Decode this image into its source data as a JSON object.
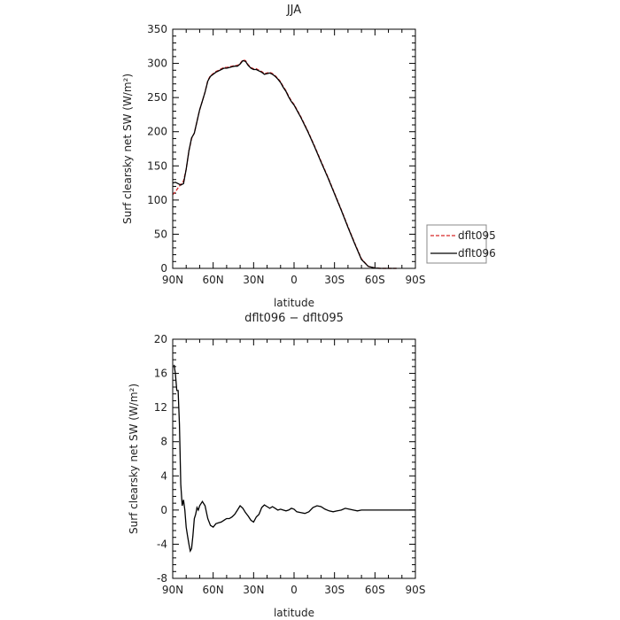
{
  "chart_data": [
    {
      "type": "line",
      "title": "JJA",
      "xlabel": "latitude",
      "ylabel": "Surf clearsky net SW (W/m²)",
      "xticks": [
        "90N",
        "60N",
        "30N",
        "0",
        "30S",
        "60S",
        "90S"
      ],
      "xlim": [
        90,
        -90
      ],
      "ylim": [
        0,
        350
      ],
      "yticks": [
        0,
        50,
        100,
        150,
        200,
        250,
        300,
        350
      ],
      "legend": {
        "placement": "right"
      },
      "series": [
        {
          "name": "dflt095",
          "color": "#d62728",
          "dash": "dashed",
          "x": [
            90,
            88,
            86,
            84,
            82,
            80,
            78,
            76,
            74,
            72,
            70,
            68,
            66,
            64,
            62,
            60,
            58,
            56,
            54,
            52,
            50,
            48,
            46,
            44,
            42,
            40,
            38,
            36,
            34,
            32,
            30,
            28,
            26,
            24,
            22,
            20,
            18,
            16,
            14,
            12,
            10,
            8,
            6,
            4,
            2,
            0,
            -5,
            -10,
            -15,
            -20,
            -25,
            -30,
            -35,
            -40,
            -45,
            -50,
            -55,
            -60,
            -62,
            -64,
            -66,
            -68,
            -70,
            -72,
            -74,
            -76
          ],
          "y": [
            108,
            112,
            118,
            123,
            128,
            145,
            172,
            190,
            198,
            215,
            232,
            245,
            258,
            275,
            282,
            285,
            288,
            290,
            292,
            294,
            294,
            295,
            296,
            297,
            297,
            300,
            305,
            304,
            298,
            294,
            292,
            292,
            290,
            288,
            285,
            286,
            287,
            285,
            282,
            278,
            273,
            266,
            260,
            252,
            245,
            240,
            222,
            202,
            180,
            157,
            134,
            110,
            86,
            61,
            37,
            14,
            3,
            0.5,
            0.2,
            0,
            0,
            0,
            0,
            0,
            0,
            0
          ]
        },
        {
          "name": "dflt096",
          "color": "#000000",
          "dash": "solid",
          "x": [
            90,
            88,
            86,
            84,
            82,
            80,
            78,
            76,
            74,
            72,
            70,
            68,
            66,
            64,
            62,
            60,
            58,
            56,
            54,
            52,
            50,
            48,
            46,
            44,
            42,
            40,
            38,
            36,
            34,
            32,
            30,
            28,
            26,
            24,
            22,
            20,
            18,
            16,
            14,
            12,
            10,
            8,
            6,
            4,
            2,
            0,
            -5,
            -10,
            -15,
            -20,
            -25,
            -30,
            -35,
            -40,
            -45,
            -50,
            -55,
            -60,
            -62,
            -64,
            -66,
            -68,
            -70,
            -72,
            -74,
            -76
          ],
          "y": [
            125,
            126,
            124,
            122,
            124,
            145,
            172,
            191,
            198,
            215,
            232,
            245,
            258,
            274,
            281,
            284,
            287,
            289,
            291,
            293,
            293,
            294,
            295,
            296,
            296,
            299,
            304,
            303,
            297,
            293,
            291,
            291,
            289,
            287,
            284,
            285,
            286,
            284,
            281,
            277,
            272,
            265,
            259,
            251,
            244,
            239,
            221,
            201,
            179,
            156,
            133,
            109,
            85,
            60,
            36,
            13,
            3,
            0.5,
            0.2,
            0,
            0,
            0,
            0,
            0,
            0,
            0
          ]
        }
      ]
    },
    {
      "type": "line",
      "title": "dflt096 − dflt095",
      "xlabel": "latitude",
      "ylabel": "Surf clearsky net SW (W/m²)",
      "xticks": [
        "90N",
        "60N",
        "30N",
        "0",
        "30S",
        "60S",
        "90S"
      ],
      "xlim": [
        90,
        -90
      ],
      "ylim": [
        -8,
        20
      ],
      "yticks": [
        -8,
        -4,
        0,
        4,
        8,
        12,
        16,
        20
      ],
      "series": [
        {
          "name": "",
          "color": "#000000",
          "dash": "solid",
          "x": [
            89,
            88,
            87,
            86,
            85,
            84,
            83,
            82,
            81,
            80,
            79,
            78,
            77,
            76,
            75,
            74,
            73,
            72,
            71,
            70,
            68,
            66,
            64,
            62,
            60,
            58,
            56,
            54,
            52,
            50,
            48,
            46,
            44,
            42,
            40,
            38,
            36,
            34,
            32,
            30,
            28,
            26,
            24,
            22,
            20,
            18,
            16,
            14,
            12,
            10,
            8,
            6,
            4,
            2,
            0,
            -2,
            -5,
            -8,
            -11,
            -14,
            -17,
            -20,
            -23,
            -26,
            -29,
            -32,
            -35,
            -38,
            -41,
            -44,
            -47,
            -50,
            -53,
            -56,
            -60,
            -65,
            -70,
            -75,
            -80,
            -85,
            -90
          ],
          "y": [
            17,
            16,
            14,
            14,
            10,
            3,
            0.5,
            1.2,
            0,
            -2,
            -3,
            -4,
            -4.8,
            -4.5,
            -3,
            -1,
            -0.5,
            0.3,
            0,
            0.5,
            1,
            0.5,
            -1,
            -1.8,
            -2,
            -1.6,
            -1.5,
            -1.4,
            -1.2,
            -1,
            -1,
            -0.8,
            -0.5,
            0,
            0.5,
            0.2,
            -0.3,
            -0.7,
            -1.2,
            -1.4,
            -0.8,
            -0.5,
            0.3,
            0.6,
            0.4,
            0.2,
            0.4,
            0.2,
            0,
            0.1,
            0,
            -0.1,
            0,
            0.2,
            0.1,
            -0.2,
            -0.3,
            -0.4,
            -0.2,
            0.3,
            0.5,
            0.4,
            0.1,
            -0.1,
            -0.2,
            -0.1,
            0,
            0.2,
            0.1,
            0,
            -0.1,
            0,
            0,
            0,
            0,
            0,
            0,
            0,
            0,
            0,
            0
          ]
        }
      ]
    }
  ]
}
